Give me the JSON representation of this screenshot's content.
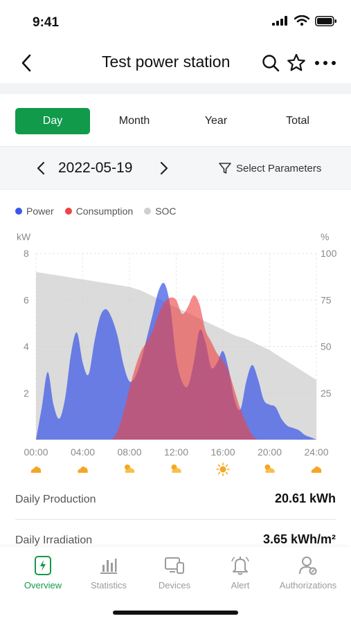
{
  "status_bar": {
    "time": "9:41",
    "icons": [
      "cellular-signal-icon",
      "wifi-icon",
      "battery-icon"
    ]
  },
  "nav": {
    "title": "Test power station",
    "back_icon": "chevron-left-icon",
    "actions": [
      "search-icon",
      "star-icon",
      "more-icon"
    ]
  },
  "tabs": [
    {
      "label": "Day",
      "active": true
    },
    {
      "label": "Month",
      "active": false
    },
    {
      "label": "Year",
      "active": false
    },
    {
      "label": "Total",
      "active": false
    }
  ],
  "date_bar": {
    "date": "2022-05-19",
    "select_params_label": "Select Parameters",
    "filter_icon": "filter-icon"
  },
  "legend": [
    {
      "label": "Power",
      "color": "#3b57e6"
    },
    {
      "label": "Consumption",
      "color": "#ee4444"
    },
    {
      "label": "SOC",
      "color": "#cfcfcf"
    }
  ],
  "chart_data": {
    "type": "area",
    "left_unit": "kW",
    "right_unit": "%",
    "ylim_left": [
      0,
      8
    ],
    "ylim_right": [
      0,
      100
    ],
    "yticks_left": [
      "8",
      "6",
      "4",
      "2"
    ],
    "yticks_right": [
      "100",
      "75",
      "50",
      "25"
    ],
    "xticks": [
      "00:00",
      "04:00",
      "08:00",
      "12:00",
      "16:00",
      "20:00",
      "24:00"
    ],
    "weather_icons": [
      "cloudy-icon",
      "cloudy-icon",
      "partly-sunny-icon",
      "partly-sunny-icon",
      "sunny-icon",
      "partly-sunny-icon",
      "cloudy-icon"
    ],
    "grid": true,
    "x_hours": [
      0,
      0.5,
      1,
      1.5,
      2,
      2.5,
      3,
      3.5,
      4,
      4.5,
      5,
      5.5,
      6,
      6.5,
      7,
      7.5,
      8,
      8.5,
      9,
      9.5,
      10,
      10.5,
      11,
      11.5,
      12,
      12.5,
      13,
      13.5,
      14,
      14.5,
      15,
      15.5,
      16,
      16.5,
      17,
      17.5,
      18,
      18.5,
      19,
      19.5,
      20,
      20.5,
      21,
      21.5,
      22,
      22.5,
      23,
      23.5,
      24
    ],
    "series": [
      {
        "name": "Power",
        "color": "#3b57e6",
        "values": [
          0,
          1.4,
          2.9,
          1.5,
          0.9,
          1.8,
          3.7,
          4.6,
          3.3,
          2.8,
          4.2,
          5.3,
          5.6,
          5.2,
          4.4,
          3.2,
          2.5,
          2.7,
          3.4,
          4.4,
          5.4,
          6.4,
          6.7,
          5.7,
          3.5,
          2.5,
          2.3,
          3.3,
          4.7,
          4.2,
          3.1,
          3.3,
          3.8,
          3.0,
          1.7,
          1.3,
          2.5,
          3.2,
          2.6,
          1.7,
          1.5,
          1.4,
          0.9,
          0.6,
          0.5,
          0.4,
          0.2,
          0.1,
          0
        ]
      },
      {
        "name": "Consumption",
        "color": "#ee4444",
        "values": [
          0,
          0,
          0,
          0,
          0,
          0,
          0,
          0,
          0,
          0,
          0,
          0,
          0,
          0,
          0.4,
          1.2,
          2.2,
          3.1,
          3.8,
          4.2,
          4.7,
          5.4,
          5.9,
          6.1,
          6.0,
          5.4,
          5.7,
          6.2,
          5.8,
          4.7,
          4.2,
          3.7,
          3.4,
          2.9,
          2.1,
          1.3,
          0.7,
          0.2,
          0,
          0,
          0,
          0,
          0,
          0,
          0,
          0,
          0,
          0,
          0
        ]
      },
      {
        "name": "SOC",
        "color": "#cfcfcf",
        "values": [
          90,
          89.5,
          89,
          88.5,
          88,
          87.5,
          87,
          86.5,
          86,
          85.5,
          85,
          84.5,
          84,
          83.5,
          83,
          82.5,
          82,
          81,
          80,
          78.5,
          77,
          75.5,
          74,
          72.5,
          71,
          69.5,
          68,
          66.5,
          65,
          63.5,
          62,
          60.5,
          59,
          57.5,
          56,
          55,
          54,
          52.5,
          51,
          49.5,
          48,
          46,
          44,
          42,
          40,
          38,
          36,
          34,
          32
        ]
      }
    ]
  },
  "stats": {
    "production_label": "Daily Production",
    "production_value": "20.61 kWh",
    "irradiation_label": "Daily Irradiation",
    "irradiation_value": "3.65 kWh/m²"
  },
  "tabbar": [
    {
      "label": "Overview",
      "icon": "overview-icon",
      "active": true
    },
    {
      "label": "Statistics",
      "icon": "statistics-icon",
      "active": false
    },
    {
      "label": "Devices",
      "icon": "devices-icon",
      "active": false
    },
    {
      "label": "Alert",
      "icon": "alert-bell-icon",
      "active": false
    },
    {
      "label": "Authorizations",
      "icon": "authorizations-icon",
      "active": false
    }
  ],
  "colors": {
    "accent": "#109a4a",
    "power": "#3b57e6",
    "consumption": "#ee4444",
    "soc": "#cfcfcf"
  }
}
